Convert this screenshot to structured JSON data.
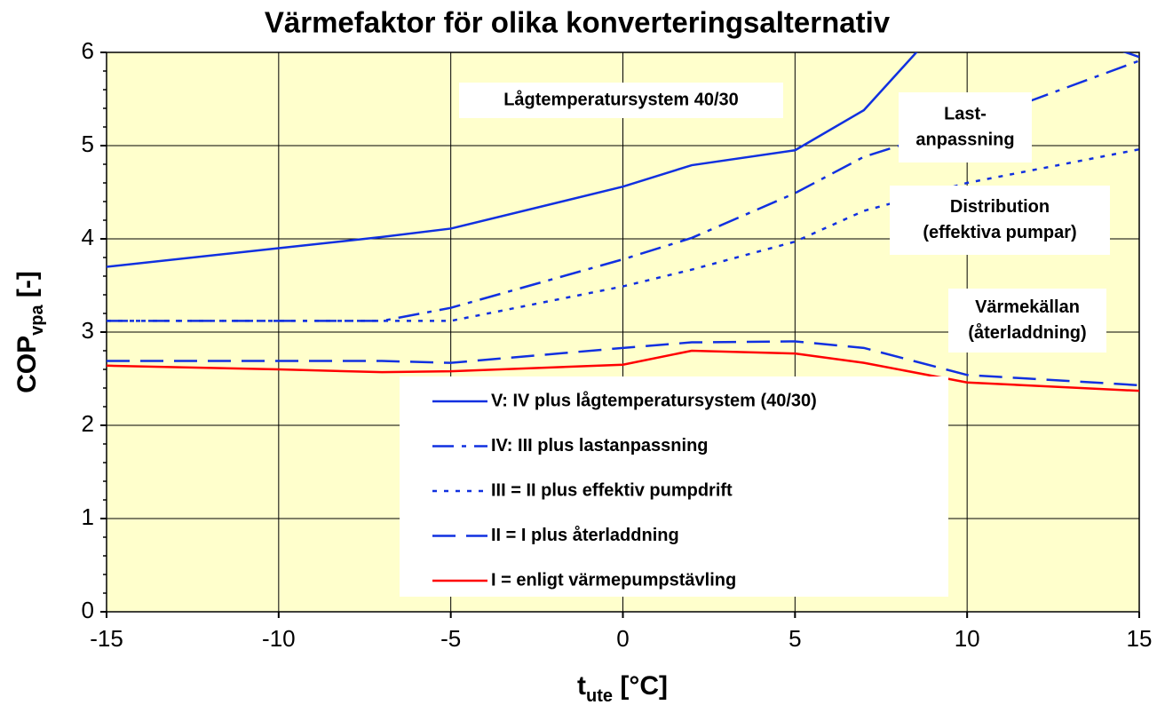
{
  "chart_data": {
    "type": "line",
    "title": "Värmefaktor för olika konverteringsalternativ",
    "y_label": {
      "main": "COP",
      "sub": "vpa",
      "suffix": " [-]"
    },
    "x_label": {
      "main": "t",
      "sub": "ute",
      "suffix": " [°C]"
    },
    "x": [
      -15,
      -10,
      -7,
      -5,
      0,
      2,
      5,
      7,
      10,
      15
    ],
    "series": [
      {
        "name": "V: IV plus lågtemperatursystem (40/30)",
        "color": "#1030e0",
        "dash": "solid",
        "values": [
          3.7,
          3.9,
          4.02,
          4.11,
          4.56,
          4.79,
          4.95,
          5.38,
          6.6,
          5.95
        ]
      },
      {
        "name": "IV: III plus lastanpassning",
        "color": "#1030e0",
        "dash": "dashdot",
        "values": [
          3.12,
          3.12,
          3.12,
          3.26,
          3.78,
          4.01,
          4.49,
          4.88,
          5.23,
          5.91
        ]
      },
      {
        "name": "III = II plus effektiv pumpdrift",
        "color": "#1030e0",
        "dash": "dotted",
        "values": [
          3.12,
          3.12,
          3.12,
          3.12,
          3.49,
          3.67,
          3.97,
          4.3,
          4.6,
          4.96
        ]
      },
      {
        "name": "II = I plus återladdning",
        "color": "#1030e0",
        "dash": "dashed",
        "values": [
          2.69,
          2.69,
          2.69,
          2.67,
          2.83,
          2.89,
          2.9,
          2.83,
          2.54,
          2.43
        ]
      },
      {
        "name": "I = enligt värmepumpstävling",
        "color": "#ff0000",
        "dash": "solid",
        "values": [
          2.64,
          2.6,
          2.57,
          2.58,
          2.65,
          2.8,
          2.77,
          2.67,
          2.46,
          2.37
        ]
      }
    ],
    "annotations": [
      {
        "lines": [
          "Lågtemperatursystem 40/30"
        ]
      },
      {
        "lines": [
          "Last-",
          "anpassning"
        ]
      },
      {
        "lines": [
          "Distribution",
          "(effektiva pumpar)"
        ]
      },
      {
        "lines": [
          "Värmekällan",
          "(återladdning)"
        ]
      }
    ],
    "xlim": [
      -15,
      15
    ],
    "xticks": [
      -15,
      -10,
      -5,
      0,
      5,
      10,
      15
    ],
    "ylim": [
      0,
      6
    ],
    "yticks": [
      0,
      1,
      2,
      3,
      4,
      5,
      6
    ],
    "grid": true,
    "plot_background": "#ffffcc"
  }
}
